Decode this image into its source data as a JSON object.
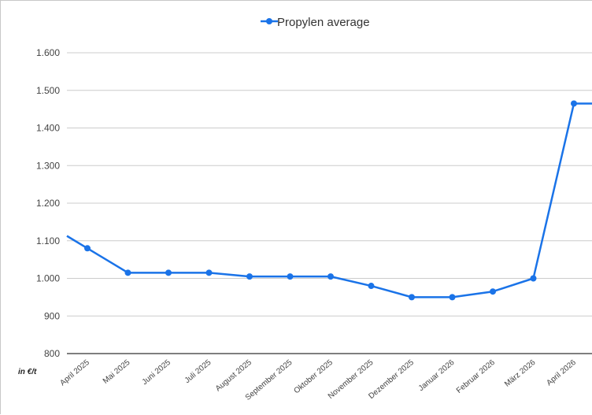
{
  "chart_data": {
    "type": "line",
    "legend": {
      "position": "top"
    },
    "unit_label": "in €/t",
    "categories": [
      "April 2025",
      "Mai 2025",
      "Juni 2025",
      "Juli 2025",
      "August 2025",
      "September 2025",
      "Oktober 2025",
      "November 2025",
      "Dezember 2025",
      "Januar 2026",
      "Februar 2026",
      "März 2026",
      "April 2026"
    ],
    "series": [
      {
        "name": "Propylen average",
        "color": "#1a73e8",
        "values": [
          1080,
          1015,
          1015,
          1015,
          1005,
          1005,
          1005,
          980,
          950,
          950,
          965,
          1000,
          1465
        ]
      }
    ],
    "ylim": [
      800,
      1600
    ],
    "yticks": [
      800,
      900,
      1000,
      1100,
      1200,
      1300,
      1400,
      1500,
      1600
    ],
    "ytick_labels": [
      "800",
      "900",
      "1.000",
      "1.100",
      "1.200",
      "1.300",
      "1.400",
      "1.500",
      "1.600"
    ],
    "grid": true,
    "colors": {
      "grid": "#cccccc",
      "axis": "#555555"
    }
  }
}
